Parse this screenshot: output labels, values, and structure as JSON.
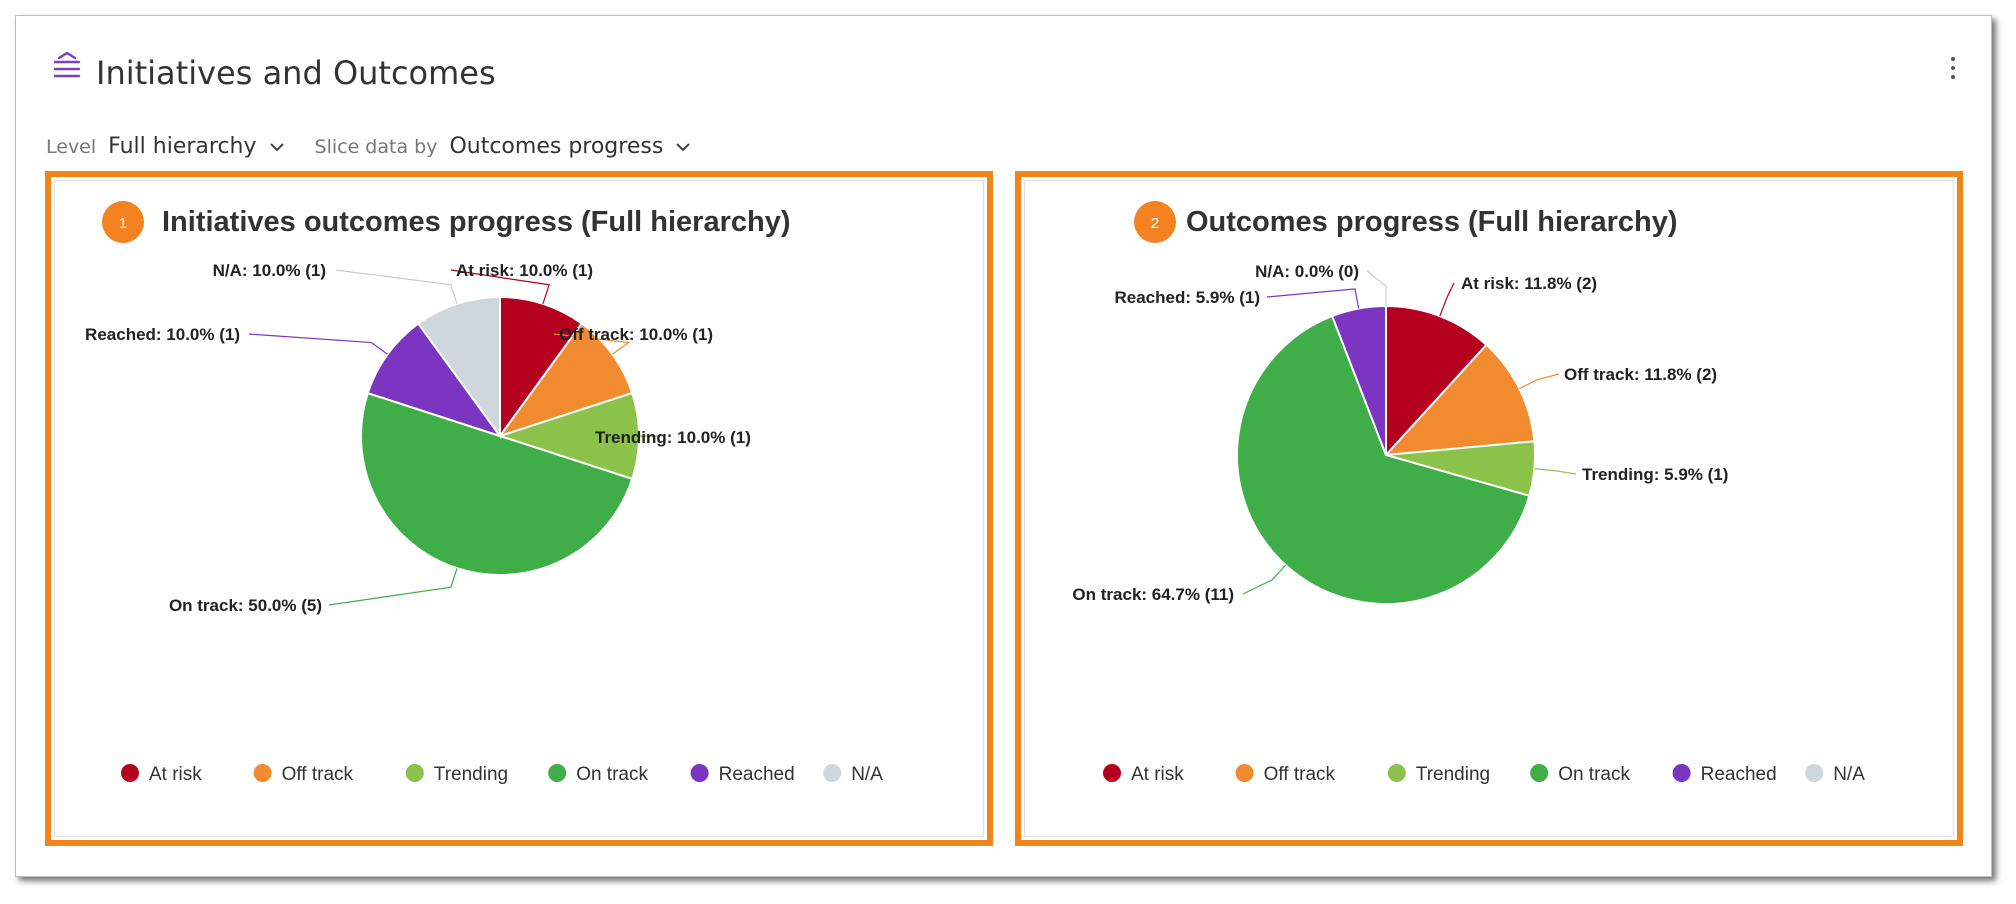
{
  "header": {
    "title": "Initiatives and Outcomes",
    "icon": "roadmap-icon",
    "menu_icon": "kebab-menu-icon"
  },
  "filters": {
    "level_label": "Level",
    "level_value": "Full hierarchy",
    "slice_label": "Slice data by",
    "slice_value": "Outcomes progress"
  },
  "colors": {
    "accent": "#7b3fc4",
    "highlight_border": "#f08519",
    "badge": "#f58220"
  },
  "legend": [
    {
      "label": "At risk",
      "color": "#b5001f"
    },
    {
      "label": "Off track",
      "color": "#f28b30"
    },
    {
      "label": "Trending",
      "color": "#8bc34a"
    },
    {
      "label": "On track",
      "color": "#3fae49"
    },
    {
      "label": "Reached",
      "color": "#7b35c1"
    },
    {
      "label": "N/A",
      "color": "#cfd6dc"
    }
  ],
  "chart_data": [
    {
      "type": "pie",
      "badge": "1",
      "title": "Initiatives outcomes progress (Full hierarchy)",
      "legend_position": "bottom",
      "slices": [
        {
          "name": "At risk",
          "value": 1,
          "percent": 10.0,
          "label": "At risk: 10.0% (1)"
        },
        {
          "name": "Off track",
          "value": 1,
          "percent": 10.0,
          "label": "Off track: 10.0% (1)"
        },
        {
          "name": "Trending",
          "value": 1,
          "percent": 10.0,
          "label": "Trending: 10.0% (1)"
        },
        {
          "name": "On track",
          "value": 5,
          "percent": 50.0,
          "label": "On track: 50.0% (5)"
        },
        {
          "name": "Reached",
          "value": 1,
          "percent": 10.0,
          "label": "Reached: 10.0% (1)"
        },
        {
          "name": "N/A",
          "value": 1,
          "percent": 10.0,
          "label": "N/A: 10.0% (1)"
        }
      ]
    },
    {
      "type": "pie",
      "badge": "2",
      "title": "Outcomes progress (Full hierarchy)",
      "legend_position": "bottom",
      "slices": [
        {
          "name": "At risk",
          "value": 2,
          "percent": 11.8,
          "label": "At risk: 11.8% (2)"
        },
        {
          "name": "Off track",
          "value": 2,
          "percent": 11.8,
          "label": "Off track: 11.8% (2)"
        },
        {
          "name": "Trending",
          "value": 1,
          "percent": 5.9,
          "label": "Trending: 5.9% (1)"
        },
        {
          "name": "On track",
          "value": 11,
          "percent": 64.7,
          "label": "On track: 64.7% (11)"
        },
        {
          "name": "Reached",
          "value": 1,
          "percent": 5.9,
          "label": "Reached: 5.9% (1)"
        },
        {
          "name": "N/A",
          "value": 0,
          "percent": 0.0,
          "label": "N/A: 0.0% (0)"
        }
      ]
    }
  ]
}
